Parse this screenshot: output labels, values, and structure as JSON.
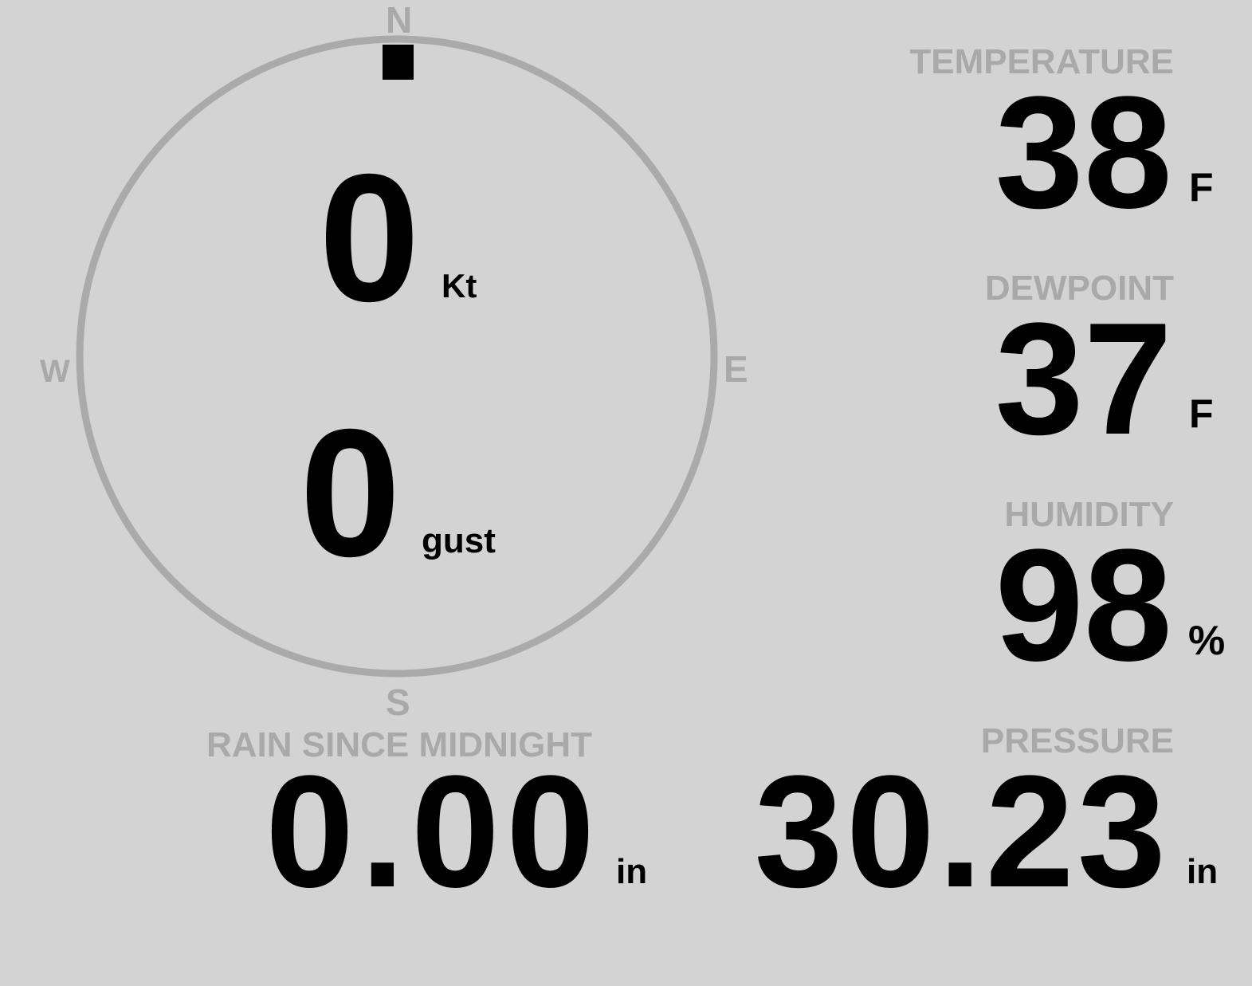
{
  "wind": {
    "compass": {
      "north": "N",
      "south": "S",
      "east": "E",
      "west": "W"
    },
    "direction_deg": 0,
    "speed": "0",
    "speed_unit": "Kt",
    "gust": "0",
    "gust_unit": "gust"
  },
  "temperature": {
    "label": "TEMPERATURE",
    "value": "38",
    "unit": "F"
  },
  "dewpoint": {
    "label": "DEWPOINT",
    "value": "37",
    "unit": "F"
  },
  "humidity": {
    "label": "HUMIDITY",
    "value": "98",
    "unit": "%"
  },
  "rain": {
    "label": "RAIN SINCE MIDNIGHT",
    "value": "0.00",
    "unit": "in"
  },
  "pressure": {
    "label": "PRESSURE",
    "value": "30.23",
    "unit": "in"
  },
  "colors": {
    "background": "#d3d3d3",
    "label": "#a9a9a9",
    "value": "#000000"
  }
}
